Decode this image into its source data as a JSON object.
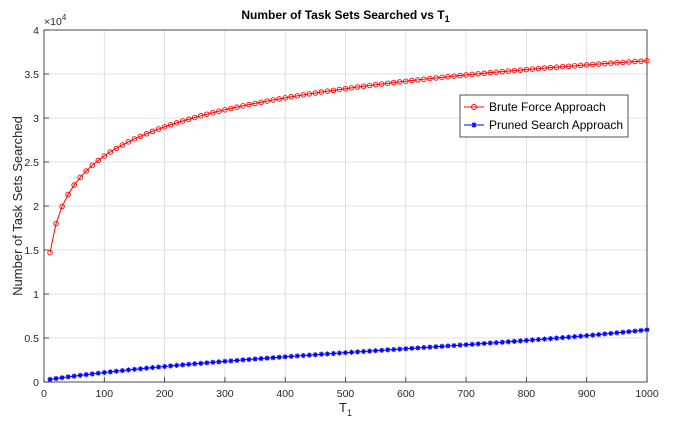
{
  "chart_data": {
    "type": "line",
    "title": "Number of Task Sets Searched vs T",
    "title_subscript": "1",
    "xlabel": "T",
    "xlabel_subscript": "1",
    "ylabel": "Number of Task Sets Searched",
    "y_multiplier_label": "×10",
    "y_multiplier_exponent": "4",
    "xlim": [
      0,
      1000
    ],
    "ylim": [
      0,
      4
    ],
    "xticks": [
      "0",
      "100",
      "200",
      "300",
      "400",
      "500",
      "600",
      "700",
      "800",
      "900",
      "1000"
    ],
    "yticks": [
      "0",
      "0.5",
      "1",
      "1.5",
      "2",
      "2.5",
      "3",
      "3.5",
      "4"
    ],
    "grid": true,
    "legend_position": "right",
    "x": [
      10,
      20,
      30,
      40,
      50,
      60,
      70,
      80,
      90,
      100,
      110,
      120,
      130,
      140,
      150,
      160,
      170,
      180,
      190,
      200,
      210,
      220,
      230,
      240,
      250,
      260,
      270,
      280,
      290,
      300,
      310,
      320,
      330,
      340,
      350,
      360,
      370,
      380,
      390,
      400,
      410,
      420,
      430,
      440,
      450,
      460,
      470,
      480,
      490,
      500,
      510,
      520,
      530,
      540,
      550,
      560,
      570,
      580,
      590,
      600,
      610,
      620,
      630,
      640,
      650,
      660,
      670,
      680,
      690,
      700,
      710,
      720,
      730,
      740,
      750,
      760,
      770,
      780,
      790,
      800,
      810,
      820,
      830,
      840,
      850,
      860,
      870,
      880,
      890,
      900,
      910,
      920,
      930,
      940,
      950,
      960,
      970,
      980,
      990,
      1000
    ],
    "series": [
      {
        "name": "Brute Force Approach",
        "color": "#ff0000",
        "marker": "circle",
        "values": [
          1.47,
          1.801,
          1.994,
          2.131,
          2.238,
          2.325,
          2.398,
          2.462,
          2.518,
          2.568,
          2.614,
          2.655,
          2.693,
          2.729,
          2.762,
          2.792,
          2.821,
          2.849,
          2.875,
          2.899,
          2.923,
          2.945,
          2.966,
          2.986,
          3.006,
          3.025,
          3.043,
          3.06,
          3.077,
          3.093,
          3.108,
          3.124,
          3.138,
          3.152,
          3.166,
          3.179,
          3.192,
          3.205,
          3.217,
          3.229,
          3.241,
          3.252,
          3.263,
          3.274,
          3.284,
          3.295,
          3.305,
          3.314,
          3.324,
          3.333,
          3.343,
          3.352,
          3.361,
          3.369,
          3.378,
          3.386,
          3.394,
          3.402,
          3.41,
          3.418,
          3.426,
          3.433,
          3.441,
          3.448,
          3.455,
          3.462,
          3.469,
          3.476,
          3.483,
          3.489,
          3.496,
          3.502,
          3.508,
          3.515,
          3.521,
          3.527,
          3.533,
          3.539,
          3.544,
          3.55,
          3.556,
          3.561,
          3.567,
          3.572,
          3.578,
          3.583,
          3.588,
          3.593,
          3.598,
          3.603,
          3.608,
          3.613,
          3.618,
          3.623,
          3.628,
          3.632,
          3.637,
          3.642,
          3.646,
          3.651
        ]
      },
      {
        "name": "Pruned Search Approach",
        "color": "#0000ff",
        "marker": "star",
        "values": [
          0.03,
          0.04,
          0.049,
          0.058,
          0.067,
          0.076,
          0.084,
          0.092,
          0.1,
          0.108,
          0.115,
          0.123,
          0.13,
          0.137,
          0.144,
          0.15,
          0.157,
          0.164,
          0.17,
          0.176,
          0.183,
          0.189,
          0.195,
          0.201,
          0.207,
          0.212,
          0.218,
          0.224,
          0.229,
          0.235,
          0.24,
          0.245,
          0.251,
          0.256,
          0.261,
          0.266,
          0.271,
          0.276,
          0.281,
          0.286,
          0.291,
          0.296,
          0.301,
          0.305,
          0.31,
          0.315,
          0.319,
          0.324,
          0.329,
          0.333,
          0.338,
          0.342,
          0.347,
          0.351,
          0.356,
          0.36,
          0.365,
          0.369,
          0.374,
          0.378,
          0.383,
          0.387,
          0.392,
          0.396,
          0.401,
          0.405,
          0.41,
          0.414,
          0.419,
          0.424,
          0.428,
          0.433,
          0.438,
          0.443,
          0.447,
          0.452,
          0.457,
          0.462,
          0.467,
          0.472,
          0.477,
          0.483,
          0.488,
          0.493,
          0.499,
          0.504,
          0.51,
          0.516,
          0.521,
          0.527,
          0.533,
          0.539,
          0.546,
          0.552,
          0.559,
          0.565,
          0.572,
          0.579,
          0.586,
          0.593
        ]
      }
    ]
  }
}
